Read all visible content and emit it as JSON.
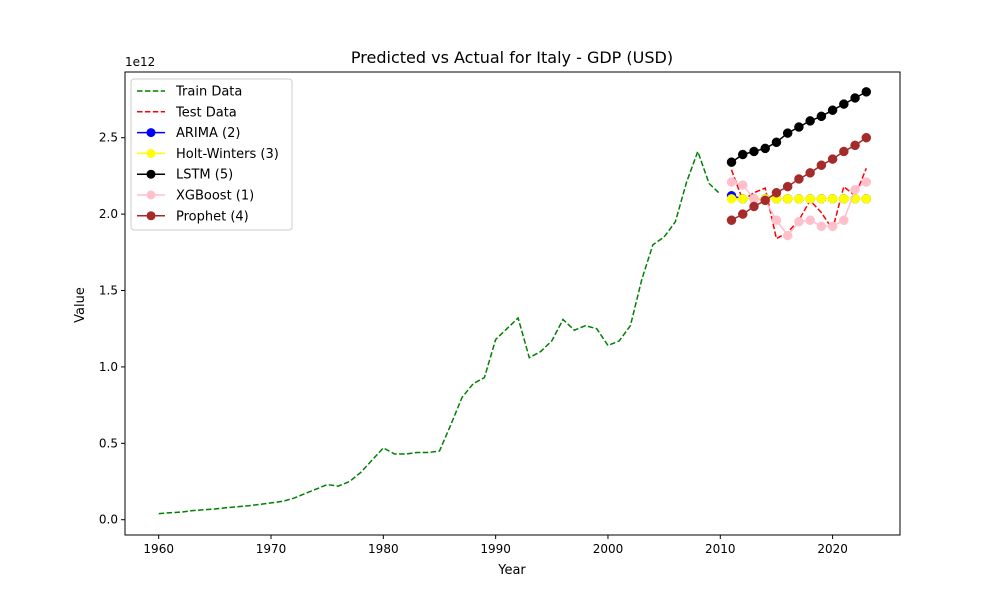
{
  "chart_data": {
    "type": "line",
    "title": "Predicted vs Actual for Italy - GDP (USD)",
    "xlabel": "Year",
    "ylabel": "Value",
    "y_offset_label": "1e12",
    "xlim": [
      1957,
      2026
    ],
    "ylim": [
      -0.1,
      2.93
    ],
    "x_ticks": [
      1960,
      1970,
      1980,
      1990,
      2000,
      2010,
      2020
    ],
    "x_tick_labels": [
      "1960",
      "1970",
      "1980",
      "1990",
      "2000",
      "2010",
      "2020"
    ],
    "y_ticks": [
      0,
      0.5,
      1.0,
      1.5,
      2.0,
      2.5
    ],
    "y_tick_labels": [
      "0.0",
      "0.5",
      "1.0",
      "1.5",
      "2.0",
      "2.5"
    ],
    "grid": false,
    "legend_position": "upper-left",
    "series": [
      {
        "name": "Train Data",
        "color": "#008000",
        "style": "dashed",
        "marker": false,
        "x": [
          1960,
          1961,
          1962,
          1963,
          1964,
          1965,
          1966,
          1967,
          1968,
          1969,
          1970,
          1971,
          1972,
          1973,
          1974,
          1975,
          1976,
          1977,
          1978,
          1979,
          1980,
          1981,
          1982,
          1983,
          1984,
          1985,
          1986,
          1987,
          1988,
          1989,
          1990,
          1991,
          1992,
          1993,
          1994,
          1995,
          1996,
          1997,
          1998,
          1999,
          2000,
          2001,
          2002,
          2003,
          2004,
          2005,
          2006,
          2007,
          2008,
          2009,
          2010
        ],
        "y": [
          0.04,
          0.045,
          0.05,
          0.06,
          0.065,
          0.07,
          0.078,
          0.085,
          0.092,
          0.1,
          0.11,
          0.12,
          0.14,
          0.17,
          0.2,
          0.23,
          0.22,
          0.25,
          0.31,
          0.39,
          0.47,
          0.43,
          0.43,
          0.44,
          0.44,
          0.45,
          0.62,
          0.8,
          0.89,
          0.93,
          1.18,
          1.25,
          1.32,
          1.06,
          1.1,
          1.17,
          1.31,
          1.24,
          1.27,
          1.25,
          1.14,
          1.17,
          1.27,
          1.57,
          1.8,
          1.85,
          1.95,
          2.21,
          2.41,
          2.2,
          2.13
        ]
      },
      {
        "name": "Test Data",
        "color": "#ff0000",
        "style": "dashed",
        "marker": false,
        "x": [
          2011,
          2012,
          2013,
          2014,
          2015,
          2016,
          2017,
          2018,
          2019,
          2020,
          2021,
          2022,
          2023
        ],
        "y": [
          2.29,
          2.09,
          2.14,
          2.17,
          1.84,
          1.88,
          1.96,
          2.09,
          2.01,
          1.9,
          2.18,
          2.12,
          2.3
        ]
      },
      {
        "name": "ARIMA (2)",
        "color": "#0000ff",
        "style": "solid",
        "marker": true,
        "x": [
          2011,
          2012,
          2013,
          2014,
          2015,
          2016,
          2017,
          2018,
          2019,
          2020,
          2021,
          2022,
          2023
        ],
        "y": [
          2.12,
          2.1,
          2.1,
          2.1,
          2.1,
          2.1,
          2.1,
          2.1,
          2.1,
          2.1,
          2.1,
          2.1,
          2.1
        ]
      },
      {
        "name": "Holt-Winters (3)",
        "color": "#ffff00",
        "style": "solid",
        "marker": true,
        "x": [
          2011,
          2012,
          2013,
          2014,
          2015,
          2016,
          2017,
          2018,
          2019,
          2020,
          2021,
          2022,
          2023
        ],
        "y": [
          2.1,
          2.1,
          2.1,
          2.1,
          2.1,
          2.1,
          2.1,
          2.1,
          2.1,
          2.1,
          2.1,
          2.1,
          2.1
        ]
      },
      {
        "name": "LSTM (5)",
        "color": "#000000",
        "style": "solid",
        "marker": true,
        "x": [
          2011,
          2012,
          2013,
          2014,
          2015,
          2016,
          2017,
          2018,
          2019,
          2020,
          2021,
          2022,
          2023
        ],
        "y": [
          2.34,
          2.39,
          2.41,
          2.43,
          2.47,
          2.53,
          2.57,
          2.61,
          2.64,
          2.68,
          2.72,
          2.76,
          2.8
        ]
      },
      {
        "name": "XGBoost (1)",
        "color": "#ffc0cb",
        "style": "solid",
        "marker": true,
        "x": [
          2011,
          2012,
          2013,
          2014,
          2015,
          2016,
          2017,
          2018,
          2019,
          2020,
          2021,
          2022,
          2023
        ],
        "y": [
          2.21,
          2.19,
          2.1,
          2.09,
          1.96,
          1.86,
          1.95,
          1.96,
          1.92,
          1.92,
          1.96,
          2.16,
          2.21
        ]
      },
      {
        "name": "Prophet (4)",
        "color": "#a52a2a",
        "style": "solid",
        "marker": true,
        "x": [
          2011,
          2012,
          2013,
          2014,
          2015,
          2016,
          2017,
          2018,
          2019,
          2020,
          2021,
          2022,
          2023
        ],
        "y": [
          1.96,
          2.0,
          2.05,
          2.09,
          2.14,
          2.18,
          2.23,
          2.27,
          2.32,
          2.36,
          2.41,
          2.45,
          2.5
        ]
      }
    ]
  }
}
